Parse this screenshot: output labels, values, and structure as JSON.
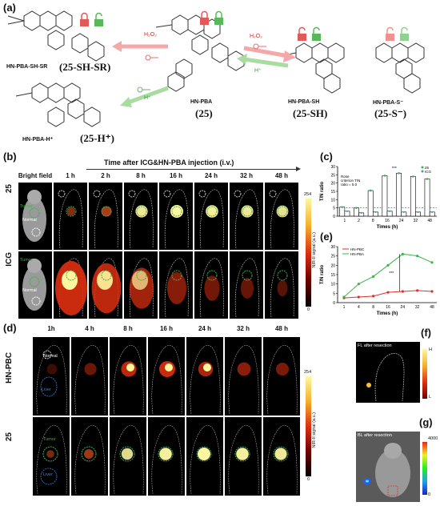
{
  "panels": {
    "a": "(a)",
    "b": "(b)",
    "c": "(c)",
    "d": "(d)",
    "e": "(e)",
    "f": "(f)",
    "g": "(g)"
  },
  "scheme": {
    "mol1_label": "HN-PBA-SH-SR",
    "mol1_code": "(25-SH-SR)",
    "mol2_label": "HN-PBA",
    "mol2_code": "(25)",
    "mol3_label": "HN-PBA-SH",
    "mol3_code": "(25-SH)",
    "mol4_label": "HN-PBA-S⁻",
    "mol4_code": "(25-S⁻)",
    "mol5_label": "HN-PBA-H⁺",
    "mol5_code": "(25-H⁺)",
    "h2o2": "H₂O₂",
    "hplus": "H⁺"
  },
  "panel_b": {
    "title": "Time after ICG&HN-PBA injection (i.v.)",
    "columns": [
      "Bright field",
      "1 h",
      "2 h",
      "8 h",
      "16 h",
      "24 h",
      "32 h",
      "48 h"
    ],
    "rows": [
      "25",
      "ICG"
    ],
    "tumor": "Tumor",
    "normal": "Normal",
    "cbar_max": "254",
    "cbar_min": "0",
    "cbar_label": "NIR-II signal (a.u.)"
  },
  "panel_c": {
    "title": "",
    "xlabel": "Times (h)",
    "ylabel": "T/N ratio",
    "annotation": "Rose criterion T/N ratio = 5.0",
    "sig": "***",
    "legend": [
      "25",
      "ICG"
    ]
  },
  "panel_e": {
    "xlabel": "Times (h)",
    "ylabel": "T/N ratio",
    "sig": "***",
    "legend": [
      "HN-PBC",
      "HN-PBA"
    ]
  },
  "panel_d": {
    "columns": [
      "1h",
      "4 h",
      "8 h",
      "16 h",
      "24 h",
      "32 h",
      "48 h"
    ],
    "rows": [
      "HN-PBC",
      "25"
    ],
    "normal": "Normal",
    "liver": "Liver",
    "tumor": "Tumor",
    "cbar_max": "254",
    "cbar_min": "0",
    "cbar_label": "NIR-II signal (a.u.)"
  },
  "panel_f": {
    "title": "FL after resection",
    "cbar_max": "H",
    "cbar_min": "L"
  },
  "panel_g": {
    "title": "BL after resection",
    "cbar_max": "4000",
    "cbar_min": "0"
  },
  "chart_data": [
    {
      "type": "bar",
      "categories": [
        "1",
        "2",
        "8",
        "16",
        "24",
        "32",
        "48"
      ],
      "xlabel": "Times (h)",
      "ylabel": "T/N ratio",
      "ylim": [
        0,
        30
      ],
      "series": [
        {
          "name": "25",
          "values": [
            5.5,
            5.0,
            15.5,
            24.5,
            26.0,
            24.0,
            22.5
          ]
        },
        {
          "name": "ICG",
          "values": [
            3.0,
            2.0,
            2.5,
            3.0,
            2.5,
            2.5,
            2.5
          ]
        }
      ],
      "annotation": "Rose criterion T/N ratio = 5.0",
      "threshold": 5.0
    },
    {
      "type": "line",
      "x": [
        "1",
        "4",
        "8",
        "16",
        "24",
        "32",
        "48"
      ],
      "xlabel": "Times (h)",
      "ylabel": "T/N ratio",
      "ylim": [
        0,
        30
      ],
      "series": [
        {
          "name": "HN-PBC",
          "values": [
            2.5,
            3.0,
            3.5,
            5.5,
            6.0,
            6.5,
            6.0
          ]
        },
        {
          "name": "HN-PBA",
          "values": [
            3.0,
            10.0,
            14.0,
            20.0,
            26.0,
            25.0,
            21.5
          ]
        }
      ]
    }
  ],
  "colors": {
    "green": "#3cb44b",
    "red": "#e0302a",
    "pink": "#f4a8a8",
    "lightgreen": "#a8dca0"
  }
}
